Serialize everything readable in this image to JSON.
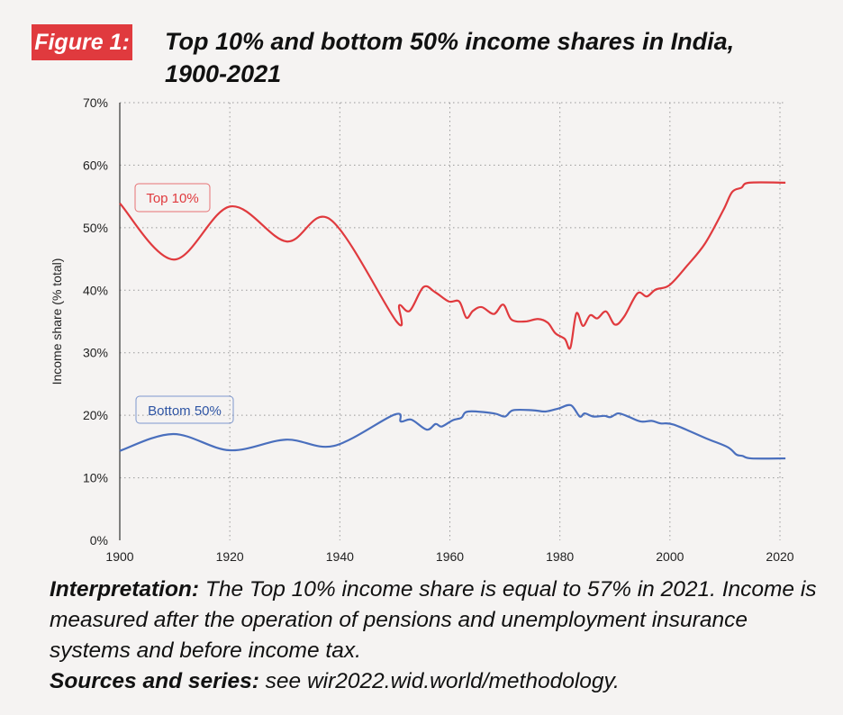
{
  "figure_label": "Figure 1:",
  "title_line1": "Top 10% and bottom 50% income shares in India,",
  "title_line2": "1900-2021",
  "notes": {
    "interp_label": "Interpretation:",
    "interp_text": " The Top 10% income share is equal to 57% in 2021. Income is measured after the operation of pensions and unemployment insurance systems and before income tax.",
    "sources_label": "Sources and series:",
    "sources_text": " see wir2022.wid.world/methodology."
  },
  "colors": {
    "top10": "#e03a3e",
    "bottom50": "#4a6fbd"
  },
  "chart_data": {
    "type": "line",
    "title": "Top 10% and bottom 50% income shares in India, 1900-2021",
    "xlabel": "",
    "ylabel": "Income share (% total)",
    "xlim": [
      1900,
      2021
    ],
    "ylim": [
      0,
      70
    ],
    "xticks": [
      1900,
      1920,
      1940,
      1960,
      1980,
      2000,
      2020
    ],
    "yticks": [
      0,
      10,
      20,
      30,
      40,
      50,
      60,
      70
    ],
    "ytick_labels": [
      "0%",
      "10%",
      "20%",
      "30%",
      "40%",
      "50%",
      "60%",
      "70%"
    ],
    "grid": true,
    "series": [
      {
        "name": "Top 10%",
        "color": "#e03a3e",
        "x": [
          1900,
          1909.8,
          1920.1,
          1930.3,
          1938.3,
          1950.3,
          1950.8,
          1952.7,
          1955.2,
          1957.3,
          1959.8,
          1961.7,
          1963.0,
          1964.2,
          1965.8,
          1968.0,
          1969.7,
          1971.2,
          1973.7,
          1976.0,
          1977.8,
          1979.2,
          1980.9,
          1981.9,
          1983.0,
          1984.2,
          1985.5,
          1986.8,
          1988.4,
          1990.0,
          1991.7,
          1994.1,
          1995.8,
          1997.4,
          1999.9,
          2003.1,
          2006.4,
          2009.7,
          2011.3,
          2013.0,
          2014.4,
          2021
        ],
        "y": [
          53.9,
          44.9,
          53.4,
          47.8,
          51.3,
          35.0,
          37.6,
          36.7,
          40.5,
          39.7,
          38.2,
          38.2,
          35.6,
          36.7,
          37.3,
          36.2,
          37.7,
          35.3,
          35.0,
          35.4,
          34.8,
          33.1,
          32.2,
          30.8,
          36.3,
          34.3,
          36.0,
          35.5,
          36.6,
          34.5,
          35.8,
          39.5,
          39.0,
          40.1,
          40.8,
          43.9,
          47.5,
          52.8,
          55.7,
          56.4,
          57.2,
          57.2
        ]
      },
      {
        "name": "Bottom 50%",
        "color": "#4a6fbd",
        "x": [
          1900,
          1909.7,
          1920,
          1930.2,
          1938.9,
          1949.9,
          1951.1,
          1953,
          1955.8,
          1957.4,
          1958.5,
          1960.5,
          1962.1,
          1963.3,
          1968,
          1970,
          1971.5,
          1975.1,
          1977.4,
          1979.8,
          1982,
          1983.6,
          1984.5,
          1986.1,
          1988.1,
          1989.2,
          1990.6,
          1992.4,
          1994.7,
          1996.7,
          1998.3,
          2000.7,
          2006.6,
          2010.5,
          2012.1,
          2013.2,
          2014.8,
          2021
        ],
        "y": [
          14.3,
          17.0,
          14.4,
          16.1,
          15.1,
          20.1,
          19.0,
          19.3,
          17.7,
          18.6,
          18.2,
          19.2,
          19.6,
          20.6,
          20.3,
          19.8,
          20.8,
          20.8,
          20.6,
          21.1,
          21.6,
          19.8,
          20.3,
          19.8,
          19.9,
          19.7,
          20.3,
          19.8,
          19.0,
          19.1,
          18.7,
          18.5,
          16.3,
          14.9,
          13.7,
          13.5,
          13.1,
          13.1
        ]
      }
    ],
    "annotations": [
      "Top 10%",
      "Bottom 50%"
    ]
  }
}
